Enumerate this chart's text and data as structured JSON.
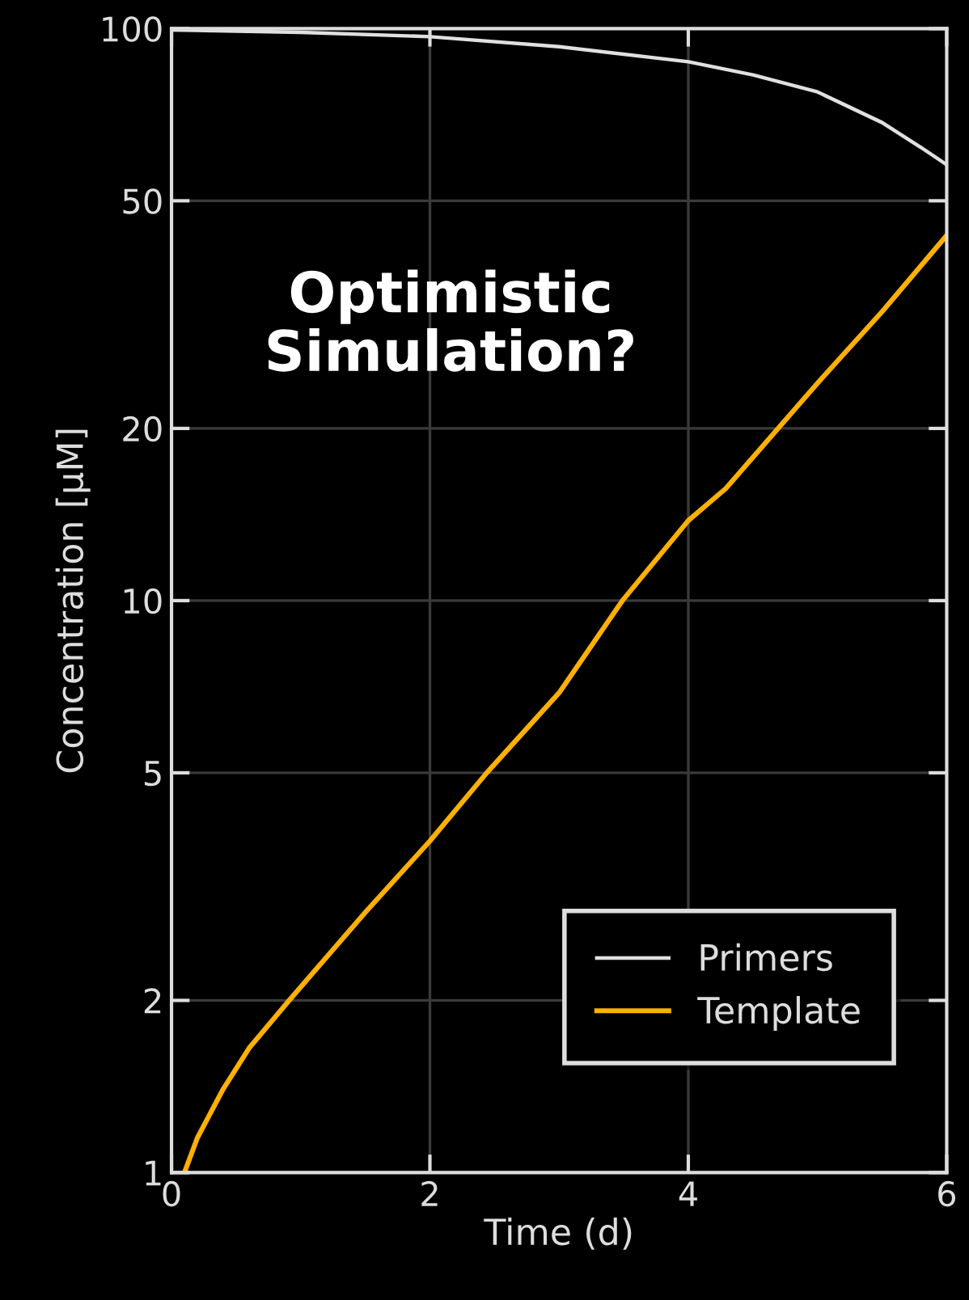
{
  "chart_data": {
    "type": "line",
    "xlabel": "Time (d)",
    "ylabel": "Concentration [µM]",
    "annotations": [
      "Optimistic\nSimulation?"
    ],
    "log": "y",
    "xlim": [
      0,
      6
    ],
    "ylim": [
      1,
      100
    ],
    "xticks": [
      0,
      2,
      4,
      6
    ],
    "yticks": [
      1,
      2,
      5,
      10,
      20,
      50,
      100
    ],
    "grid": true,
    "legend": "bottom right",
    "line_style": "solid",
    "marker": "none",
    "series": [
      {
        "name": "Primers",
        "color": "#e0e0e0",
        "x": [
          0,
          1,
          2,
          3,
          4,
          4.5,
          5,
          5.5,
          5.8,
          6
        ],
        "values": [
          99.5,
          98.5,
          96.8,
          93,
          87.5,
          83,
          77.5,
          68.5,
          62,
          57.8
        ]
      },
      {
        "name": "Template",
        "color": "#ffb000",
        "x": [
          0.1,
          0.2,
          0.4,
          0.6,
          0.91,
          1.5,
          2,
          2.44,
          3,
          3.49,
          4,
          4.29,
          5,
          5.5,
          6
        ],
        "values": [
          1,
          1.15,
          1.4,
          1.65,
          2,
          2.85,
          3.8,
          5,
          6.9,
          10,
          13.8,
          15.7,
          24,
          32,
          43.5
        ]
      }
    ]
  }
}
